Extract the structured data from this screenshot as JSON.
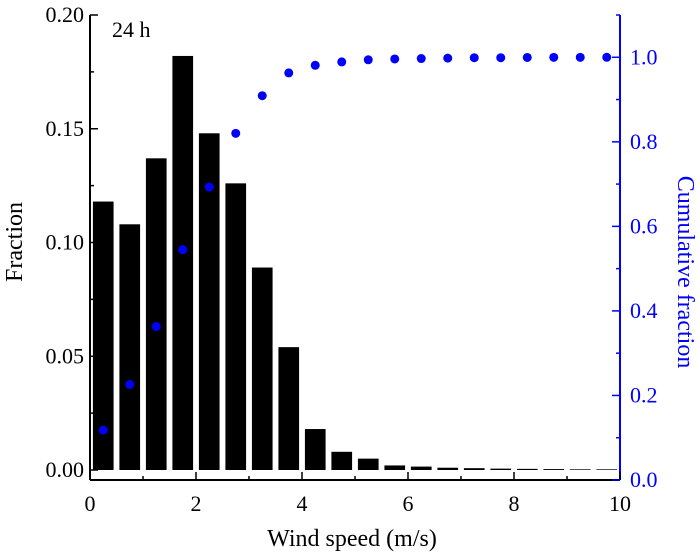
{
  "chart_data": {
    "type": "bar",
    "annotation": "24 h",
    "xlabel": "Wind speed (m/s)",
    "ylabel": "Fraction",
    "y2label": "Cumulative fraction",
    "xlim": [
      0,
      10
    ],
    "ylim": [
      -0.005,
      0.2
    ],
    "y2lim": [
      0,
      1.1
    ],
    "xticks": [
      "0",
      "2",
      "4",
      "6",
      "8",
      "10"
    ],
    "yticks": [
      "0.00",
      "0.05",
      "0.10",
      "0.15",
      "0.20"
    ],
    "y2ticks": [
      "0.0",
      "0.2",
      "0.4",
      "0.6",
      "0.8",
      "1.0"
    ],
    "grid": false,
    "colors": {
      "bars": "#000000",
      "cumulative": "#0000ff",
      "right_axis": "#0000ff"
    },
    "series": [
      {
        "type": "bar",
        "axis": "left",
        "x": [
          0.25,
          0.75,
          1.25,
          1.75,
          2.25,
          2.75,
          3.25,
          3.75,
          4.25,
          4.75,
          5.25,
          5.75,
          6.25,
          6.75,
          7.25,
          7.75,
          8.25,
          8.75,
          9.25,
          9.75
        ],
        "values": [
          0.118,
          0.108,
          0.137,
          0.182,
          0.148,
          0.126,
          0.089,
          0.054,
          0.018,
          0.008,
          0.005,
          0.002,
          0.0015,
          0.001,
          0.0008,
          0.0006,
          0.0005,
          0.0004,
          0.0003,
          0.0003
        ]
      },
      {
        "type": "scatter",
        "axis": "right",
        "x": [
          0.25,
          0.75,
          1.25,
          1.75,
          2.25,
          2.75,
          3.25,
          3.75,
          4.25,
          4.75,
          5.25,
          5.75,
          6.25,
          6.75,
          7.25,
          7.75,
          8.25,
          8.75,
          9.25,
          9.75
        ],
        "values": [
          0.118,
          0.226,
          0.363,
          0.545,
          0.693,
          0.82,
          0.909,
          0.963,
          0.981,
          0.989,
          0.994,
          0.996,
          0.997,
          0.998,
          0.999,
          0.999,
          0.9995,
          0.9998,
          0.9999,
          1.0
        ]
      }
    ]
  }
}
